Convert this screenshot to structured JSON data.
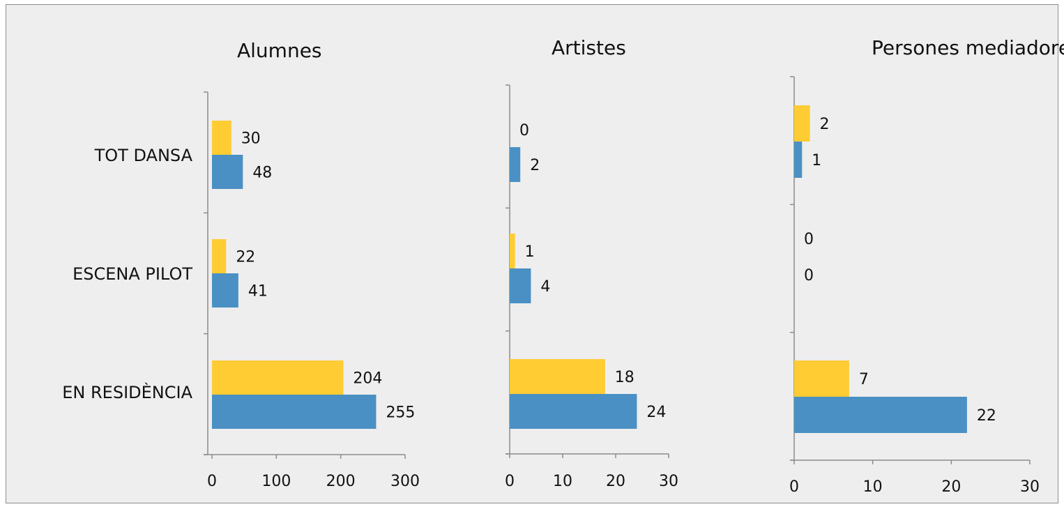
{
  "chart_data": [
    {
      "type": "bar",
      "orientation": "horizontal",
      "title": "Alumnes",
      "categories": [
        "TOT DANSA",
        "ESCENA PILOT",
        "EN RESIDÈNCIA"
      ],
      "series": [
        {
          "color": "#ffcc33",
          "values": [
            30,
            22,
            204
          ]
        },
        {
          "color": "#4a90c4",
          "values": [
            48,
            41,
            255
          ]
        }
      ],
      "xlim": [
        0,
        300
      ],
      "xticks": [
        "0",
        "100",
        "200",
        "300"
      ],
      "grid": false,
      "legend": "none"
    },
    {
      "type": "bar",
      "orientation": "horizontal",
      "title": "Artistes",
      "categories": [
        "TOT DANSA",
        "ESCENA PILOT",
        "EN RESIDÈNCIA"
      ],
      "series": [
        {
          "color": "#ffcc33",
          "values": [
            0,
            1,
            18
          ]
        },
        {
          "color": "#4a90c4",
          "values": [
            2,
            4,
            24
          ]
        }
      ],
      "xlim": [
        0,
        30
      ],
      "xticks": [
        "0",
        "10",
        "20",
        "30"
      ],
      "grid": false,
      "legend": "none"
    },
    {
      "type": "bar",
      "orientation": "horizontal",
      "title": "Persones mediadores",
      "categories": [
        "TOT DANSA",
        "ESCENA PILOT",
        "EN RESIDÈNCIA"
      ],
      "series": [
        {
          "color": "#ffcc33",
          "values": [
            2,
            0,
            7
          ]
        },
        {
          "color": "#4a90c4",
          "values": [
            1,
            0,
            22
          ]
        }
      ],
      "xlim": [
        0,
        30
      ],
      "xticks": [
        "0",
        "10",
        "20",
        "30"
      ],
      "grid": false,
      "legend": "none"
    }
  ]
}
